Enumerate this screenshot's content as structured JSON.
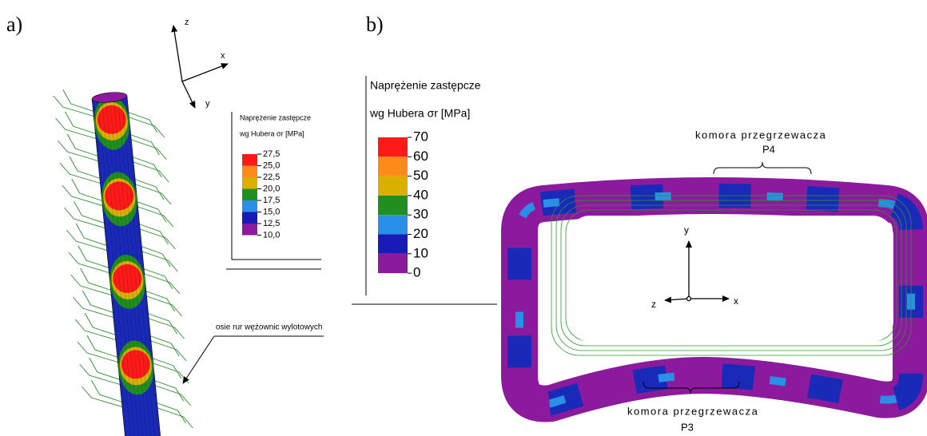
{
  "panels": {
    "a": {
      "label": "a)",
      "axes": {
        "x": "x",
        "y": "y",
        "z": "z"
      },
      "legend": {
        "title": "Naprężenie zastępcze",
        "subtitle": "wg Hubera σr [MPa]",
        "labels": [
          "27,5",
          "25,0",
          "22,5",
          "20,0",
          "17,5",
          "15,0",
          "12,5",
          "10,0"
        ],
        "colors": [
          "#ff1a1a",
          "#ff8a1a",
          "#d9b000",
          "#1f8f1f",
          "#2a8fe6",
          "#1a1ab8",
          "#8c1a9c"
        ]
      },
      "annotation": "osie rur wężownic wylotowych"
    },
    "b": {
      "label": "b)",
      "axes": {
        "x": "x",
        "y": "y",
        "z": "z"
      },
      "legend": {
        "title": "Naprężenie zastępcze",
        "subtitle": "wg Hubera σr [MPa]",
        "labels": [
          "70",
          "60",
          "50",
          "40",
          "30",
          "20",
          "10",
          "0"
        ],
        "colors": [
          "#ff1a1a",
          "#ff8a1a",
          "#d9b000",
          "#1f8f1f",
          "#2a8fe6",
          "#1a1ab8",
          "#8c1a9c"
        ]
      },
      "top_annotation": {
        "line1": "komora przegrzewacza",
        "line2": "P4"
      },
      "bottom_annotation": {
        "line1": "komora przegrzewacza",
        "line2": "P3"
      }
    }
  }
}
